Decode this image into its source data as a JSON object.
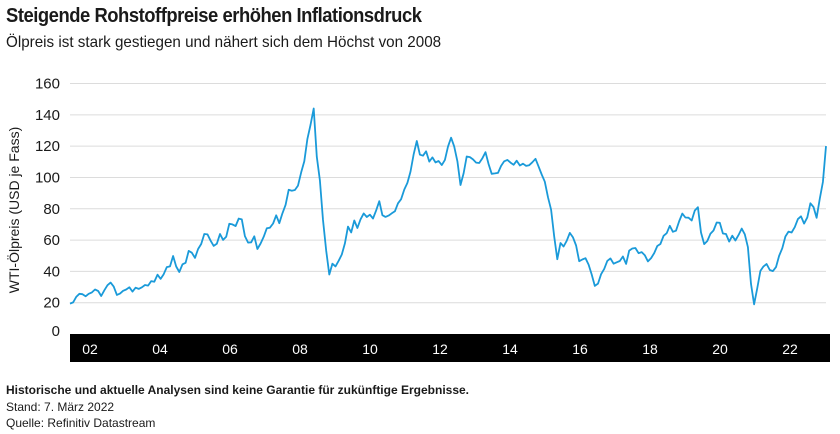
{
  "header": {
    "title": "Steigende Rohstoffpreise erhöhen Inflationsdruck",
    "subtitle": "Ölpreis ist stark gestiegen und nähert sich dem Höchst von 2008"
  },
  "footer": {
    "disclaimer": "Historische und aktuelle Analysen sind keine Garantie für zukünftige Ergebnisse.",
    "date": "Stand: 7. März 2022",
    "source": "Quelle: Refinitiv Datastream"
  },
  "chart_data": {
    "type": "line",
    "title": "",
    "xlabel": "",
    "ylabel": "WTI-Ölpreis (USD je Fass)",
    "ylim": [
      0,
      160
    ],
    "yticks": [
      "0",
      "20",
      "40",
      "60",
      "80",
      "100",
      "120",
      "140",
      "160"
    ],
    "xticks": [
      "02",
      "04",
      "06",
      "08",
      "10",
      "12",
      "14",
      "16",
      "18",
      "20",
      "22"
    ],
    "xlim": [
      "2002-01",
      "2022-03"
    ],
    "grid": true,
    "line_color": "#1a9ad9",
    "axis_band_color": "#000000",
    "frequency": "monthly",
    "series": [
      {
        "year": 2002,
        "values": [
          19.4,
          20.2,
          23.7,
          25.7,
          25.4,
          24.1,
          25.7,
          26.6,
          28.4,
          27.5,
          24.3,
          28.0
        ]
      },
      {
        "year": 2003,
        "values": [
          31.2,
          32.8,
          30.3,
          25.0,
          25.8,
          27.6,
          28.4,
          29.8,
          27.1,
          29.6,
          28.8,
          29.8
        ]
      },
      {
        "year": 2004,
        "values": [
          31.3,
          30.9,
          33.8,
          33.4,
          37.9,
          35.2,
          38.2,
          42.7,
          43.2,
          49.8,
          43.1,
          39.6
        ]
      },
      {
        "year": 2005,
        "values": [
          44.5,
          45.5,
          53.1,
          51.9,
          48.6,
          54.3,
          57.5,
          63.9,
          63.6,
          59.6,
          56.3,
          57.6
        ]
      },
      {
        "year": 2006,
        "values": [
          63.9,
          60.1,
          62.1,
          70.4,
          70.0,
          68.9,
          73.7,
          73.2,
          62.5,
          58.4,
          58.6,
          62.4
        ]
      },
      {
        "year": 2007,
        "values": [
          54.3,
          57.8,
          62.1,
          67.5,
          67.9,
          70.6,
          75.8,
          70.8,
          77.0,
          82.5,
          92.1,
          91.5
        ]
      },
      {
        "year": 2008,
        "values": [
          92.0,
          94.8,
          103.3,
          110.4,
          124.6,
          133.5,
          144.0,
          113.2,
          98.1,
          72.8,
          53.2,
          38.0
        ]
      },
      {
        "year": 2009,
        "values": [
          44.9,
          43.2,
          46.8,
          50.8,
          57.9,
          68.6,
          64.9,
          72.5,
          67.7,
          73.2,
          77.0,
          74.7
        ]
      },
      {
        "year": 2010,
        "values": [
          76.2,
          73.8,
          78.8,
          84.8,
          75.9,
          74.8,
          75.6,
          77.1,
          78.4,
          83.5,
          86.1,
          92.3
        ]
      },
      {
        "year": 2011,
        "values": [
          96.5,
          103.7,
          114.6,
          123.3,
          114.5,
          113.9,
          116.7,
          110.1,
          112.8,
          109.6,
          110.5,
          107.9
        ]
      },
      {
        "year": 2012,
        "values": [
          111.2,
          119.7,
          125.4,
          119.8,
          110.3,
          95.2,
          102.6,
          113.4,
          113.0,
          111.5,
          109.5,
          109.2
        ]
      },
      {
        "year": 2013,
        "values": [
          112.3,
          116.1,
          108.5,
          102.3,
          102.6,
          102.9,
          107.4,
          110.3,
          111.2,
          109.5,
          108.1,
          110.7
        ]
      },
      {
        "year": 2014,
        "values": [
          107.6,
          108.8,
          107.4,
          107.8,
          109.7,
          111.9,
          106.9,
          101.9,
          97.3,
          87.3,
          79.4,
          62.3
        ]
      },
      {
        "year": 2015,
        "values": [
          47.8,
          58.1,
          55.9,
          59.5,
          64.6,
          61.7,
          56.5,
          46.5,
          47.6,
          48.4,
          44.3,
          38.0
        ]
      },
      {
        "year": 2016,
        "values": [
          30.7,
          32.2,
          38.2,
          41.6,
          46.7,
          48.3,
          44.9,
          45.8,
          46.6,
          49.5,
          44.8,
          53.3
        ]
      },
      {
        "year": 2017,
        "values": [
          54.6,
          54.9,
          51.6,
          52.3,
          50.3,
          46.4,
          48.5,
          51.7,
          56.2,
          57.5,
          62.7,
          64.4
        ]
      },
      {
        "year": 2018,
        "values": [
          69.1,
          65.3,
          66.0,
          72.1,
          76.9,
          74.4,
          74.3,
          72.5,
          78.9,
          81.0,
          64.8,
          57.4
        ]
      },
      {
        "year": 2019,
        "values": [
          59.4,
          64.0,
          66.1,
          71.2,
          71.0,
          64.2,
          63.9,
          59.0,
          62.8,
          59.7,
          63.2,
          67.3
        ]
      },
      {
        "year": 2020,
        "values": [
          63.7,
          55.5,
          32.0,
          19.0,
          29.4,
          40.3,
          43.2,
          44.7,
          40.9,
          40.2,
          42.7,
          49.9
        ]
      },
      {
        "year": 2021,
        "values": [
          54.8,
          62.3,
          65.4,
          64.8,
          68.3,
          73.4,
          75.2,
          70.5,
          74.5,
          83.5,
          81.1,
          74.2
        ]
      },
      {
        "year": 2022,
        "values": [
          86.5,
          97.1,
          120.0
        ]
      }
    ]
  }
}
